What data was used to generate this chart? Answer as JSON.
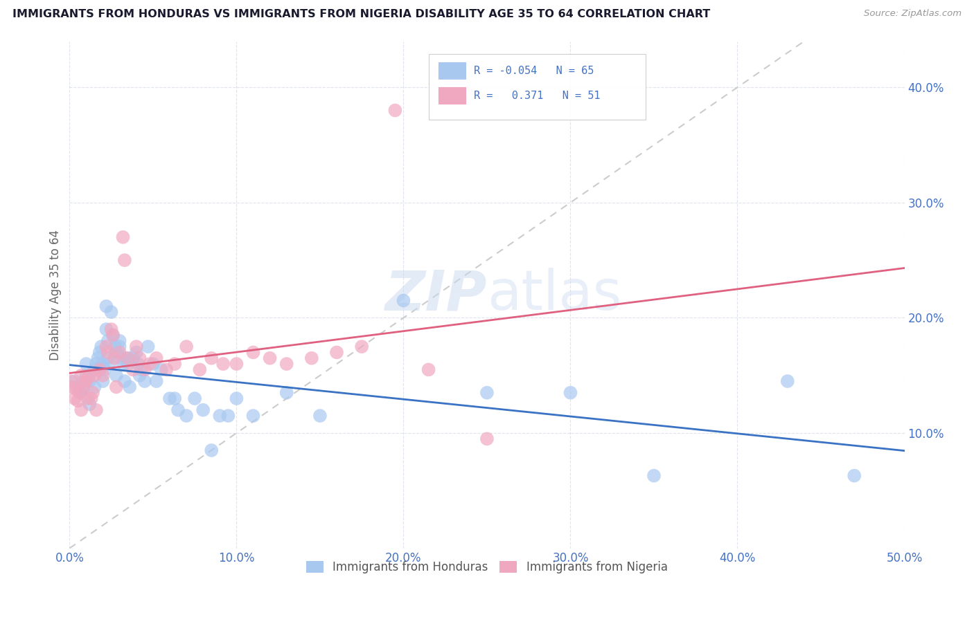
{
  "title": "IMMIGRANTS FROM HONDURAS VS IMMIGRANTS FROM NIGERIA DISABILITY AGE 35 TO 64 CORRELATION CHART",
  "source": "Source: ZipAtlas.com",
  "ylabel": "Disability Age 35 to 64",
  "xlim": [
    0.0,
    0.5
  ],
  "ylim": [
    0.0,
    0.44
  ],
  "ytick_positions": [
    0.1,
    0.2,
    0.3,
    0.4
  ],
  "ytick_labels": [
    "10.0%",
    "20.0%",
    "30.0%",
    "40.0%"
  ],
  "xtick_positions": [
    0.0,
    0.1,
    0.2,
    0.3,
    0.4,
    0.5
  ],
  "xtick_labels": [
    "0.0%",
    "10.0%",
    "20.0%",
    "30.0%",
    "40.0%",
    "50.0%"
  ],
  "legend_R1": "-0.054",
  "legend_N1": "65",
  "legend_R2": "0.371",
  "legend_N2": "51",
  "color_honduras": "#a8c8f0",
  "color_nigeria": "#f0a8c0",
  "line_color_honduras": "#3a72c4",
  "line_color_nigeria": "#e06080",
  "diagonal_color": "#cccccc",
  "watermark_color": "#c8d8ee",
  "background_color": "#ffffff",
  "tick_color": "#4472c4",
  "honduras_x": [
    0.003,
    0.005,
    0.007,
    0.008,
    0.01,
    0.01,
    0.012,
    0.012,
    0.015,
    0.015,
    0.016,
    0.017,
    0.018,
    0.018,
    0.019,
    0.02,
    0.02,
    0.021,
    0.022,
    0.022,
    0.023,
    0.023,
    0.024,
    0.025,
    0.026,
    0.027,
    0.028,
    0.028,
    0.03,
    0.03,
    0.031,
    0.032,
    0.033,
    0.034,
    0.035,
    0.036,
    0.038,
    0.04,
    0.041,
    0.042,
    0.043,
    0.045,
    0.047,
    0.05,
    0.052,
    0.055,
    0.06,
    0.063,
    0.065,
    0.07,
    0.075,
    0.08,
    0.085,
    0.09,
    0.095,
    0.1,
    0.11,
    0.13,
    0.15,
    0.2,
    0.25,
    0.3,
    0.35,
    0.43,
    0.47
  ],
  "honduras_y": [
    0.145,
    0.14,
    0.135,
    0.138,
    0.15,
    0.16,
    0.145,
    0.125,
    0.155,
    0.14,
    0.16,
    0.165,
    0.155,
    0.17,
    0.175,
    0.16,
    0.145,
    0.155,
    0.21,
    0.19,
    0.18,
    0.165,
    0.16,
    0.205,
    0.185,
    0.175,
    0.17,
    0.15,
    0.18,
    0.175,
    0.165,
    0.16,
    0.145,
    0.165,
    0.16,
    0.14,
    0.165,
    0.17,
    0.16,
    0.15,
    0.155,
    0.145,
    0.175,
    0.16,
    0.145,
    0.155,
    0.13,
    0.13,
    0.12,
    0.115,
    0.13,
    0.12,
    0.085,
    0.115,
    0.115,
    0.13,
    0.115,
    0.135,
    0.115,
    0.215,
    0.135,
    0.135,
    0.063,
    0.145,
    0.063
  ],
  "nigeria_x": [
    0.001,
    0.002,
    0.003,
    0.004,
    0.005,
    0.006,
    0.007,
    0.007,
    0.008,
    0.009,
    0.01,
    0.011,
    0.012,
    0.013,
    0.014,
    0.015,
    0.016,
    0.018,
    0.02,
    0.022,
    0.023,
    0.025,
    0.026,
    0.027,
    0.028,
    0.03,
    0.032,
    0.033,
    0.035,
    0.038,
    0.04,
    0.042,
    0.045,
    0.048,
    0.052,
    0.058,
    0.063,
    0.07,
    0.078,
    0.085,
    0.092,
    0.1,
    0.11,
    0.12,
    0.13,
    0.145,
    0.16,
    0.175,
    0.195,
    0.215,
    0.25
  ],
  "nigeria_y": [
    0.145,
    0.14,
    0.13,
    0.138,
    0.128,
    0.135,
    0.15,
    0.12,
    0.14,
    0.145,
    0.145,
    0.13,
    0.15,
    0.13,
    0.135,
    0.15,
    0.12,
    0.155,
    0.15,
    0.175,
    0.17,
    0.19,
    0.185,
    0.165,
    0.14,
    0.17,
    0.27,
    0.25,
    0.165,
    0.155,
    0.175,
    0.165,
    0.155,
    0.16,
    0.165,
    0.155,
    0.16,
    0.175,
    0.155,
    0.165,
    0.16,
    0.16,
    0.17,
    0.165,
    0.16,
    0.165,
    0.17,
    0.175,
    0.38,
    0.155,
    0.095
  ]
}
